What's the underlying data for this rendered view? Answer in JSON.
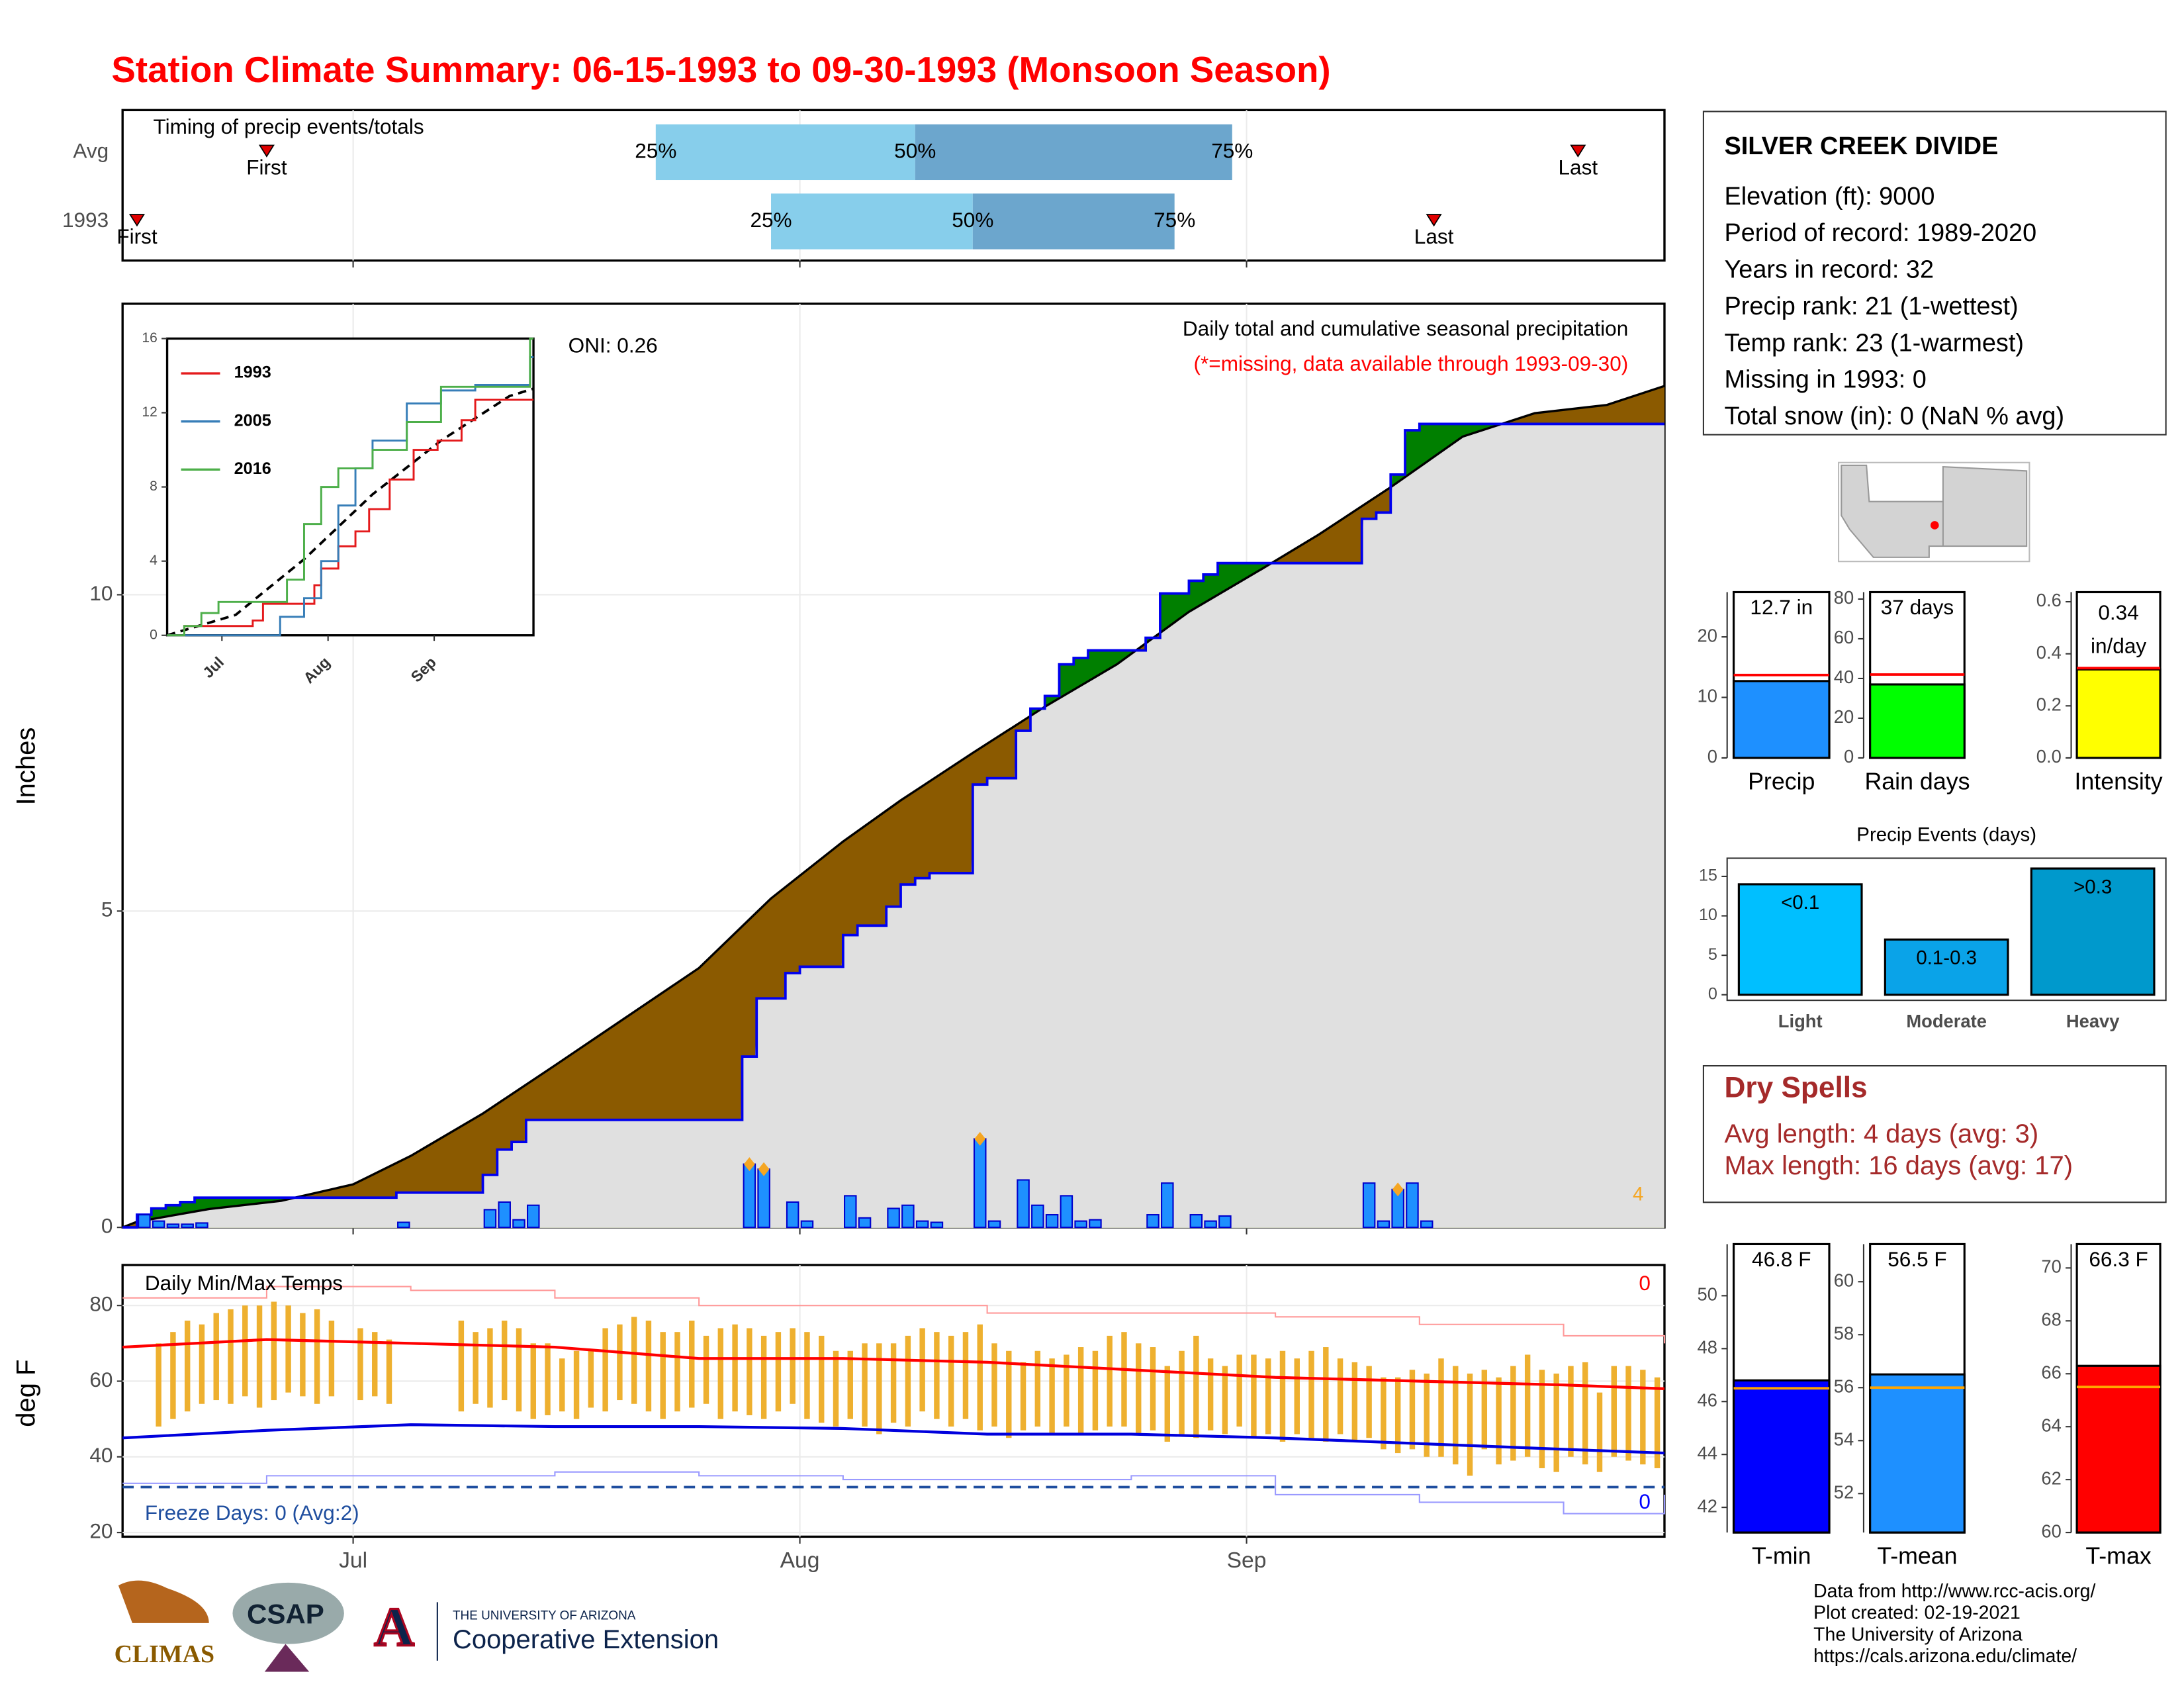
{
  "title": "Station Climate Summary: 06-15-1993 to 09-30-1993 (Monsoon Season)",
  "info": {
    "station": "SILVER CREEK DIVIDE",
    "lines": [
      "Elevation (ft): 9000",
      "Period of record: 1989-2020",
      "Years in record: 32",
      "Precip rank: 21 (1-wettest)",
      "Temp rank: 23 (1-warmest)",
      "Missing in 1993: 0",
      "Total snow (in): 0 (NaN % avg)"
    ]
  },
  "dry_spells": {
    "title": "Dry Spells",
    "lines": [
      "Avg length: 4 days (avg: 3)",
      "Max length: 16 days (avg: 17)"
    ]
  },
  "footer": {
    "logos": [
      "CLIMAS",
      "CSAP",
      "A",
      "THE UNIVERSITY OF ARIZONA",
      "Cooperative Extension"
    ],
    "credits": [
      "Data from http://www.rcc-acis.org/",
      "Plot created: 02-19-2021",
      "The University of Arizona",
      "https://cals.arizona.edu/climate/"
    ]
  },
  "chart_data": [
    {
      "type": "timeline",
      "title": "Timing of precip events/totals",
      "categories": [
        "Avg",
        "1993"
      ],
      "xlim": [
        0,
        107
      ],
      "xticks": [
        16,
        47,
        78
      ],
      "grid": true,
      "first": [
        10,
        1
      ],
      "last": [
        101,
        91
      ],
      "q25": [
        37,
        45
      ],
      "q50": [
        55,
        59
      ],
      "q75": [
        77,
        73
      ],
      "labels": {
        "first": "First",
        "last": "Last",
        "q25": "25%",
        "q50": "50%",
        "q75": "75%"
      },
      "colors": [
        "#87ceeb",
        "#6ca6cd"
      ],
      "marker_color": "#e00000"
    },
    {
      "type": "area",
      "title": "Daily total and cumulative seasonal precipitation",
      "subtitle": "(*=missing, data available through 1993-09-30)",
      "annotation": "ONI: 0.26",
      "ylabel": "Inches",
      "xlim": [
        0,
        107
      ],
      "xticks": [
        16,
        47,
        78
      ],
      "ylim": [
        0,
        14.6
      ],
      "yticks": [
        0,
        5,
        10
      ],
      "grid": true,
      "observed": {
        "color": "#0000ee",
        "x": [
          0,
          1,
          2,
          3,
          4,
          5,
          19,
          25,
          26,
          27,
          28,
          43,
          44,
          46,
          47,
          50,
          51,
          53,
          54,
          55,
          56,
          59,
          60,
          62,
          63,
          64,
          65,
          66,
          67,
          71,
          72,
          74,
          75,
          76,
          86,
          87,
          88,
          89,
          90
        ],
        "values": [
          0,
          0.2,
          0.3,
          0.35,
          0.4,
          0.47,
          0.55,
          0.83,
          1.23,
          1.35,
          1.7,
          2.7,
          3.62,
          4.02,
          4.12,
          4.62,
          4.77,
          5.07,
          5.42,
          5.52,
          5.6,
          7.0,
          7.1,
          7.85,
          8.2,
          8.4,
          8.9,
          9.0,
          9.12,
          9.32,
          10.02,
          10.22,
          10.32,
          10.5,
          11.2,
          11.3,
          11.9,
          12.6,
          12.7
        ]
      },
      "average": {
        "color": "#000000",
        "x": [
          0,
          1,
          6,
          11,
          16,
          20,
          25,
          30,
          35,
          40,
          45,
          50,
          54,
          59,
          64,
          69,
          74,
          79,
          83,
          88,
          93,
          98,
          103,
          107
        ],
        "values": [
          0,
          0.09,
          0.29,
          0.42,
          0.68,
          1.13,
          1.8,
          2.56,
          3.33,
          4.1,
          5.2,
          6.1,
          6.75,
          7.5,
          8.23,
          8.9,
          9.73,
          10.4,
          10.95,
          11.7,
          12.5,
          12.87,
          13.0,
          13.3
        ]
      },
      "daily": {
        "color": "#1e90ff",
        "values": [
          0,
          0.2,
          0.1,
          0.05,
          0.05,
          0.07,
          0,
          0,
          0,
          0,
          0,
          0,
          0,
          0,
          0,
          0,
          0,
          0,
          0,
          0.08,
          0,
          0,
          0,
          0,
          0,
          0.28,
          0.4,
          0.12,
          0.35,
          0,
          0,
          0,
          0,
          0,
          0,
          0,
          0,
          0,
          0,
          0,
          0,
          0,
          0,
          1,
          0.92,
          0,
          0.4,
          0.1,
          0,
          0,
          0.5,
          0.15,
          0,
          0.3,
          0.35,
          0.1,
          0.08,
          0,
          0,
          1.4,
          0.1,
          0,
          0.75,
          0.35,
          0.2,
          0.5,
          0.1,
          0.12,
          0,
          0,
          0,
          0.2,
          0.7,
          0,
          0.2,
          0.1,
          0.18,
          0,
          0,
          0,
          0,
          0,
          0,
          0,
          0,
          0,
          0.7,
          0.1,
          0.6,
          0.7,
          0.1,
          0,
          0,
          0,
          0,
          0,
          0,
          0,
          0,
          0,
          0,
          0,
          0,
          0,
          0,
          0,
          0,
          0
        ]
      },
      "flagged": [
        43,
        44,
        59,
        88
      ],
      "flag_color": "#f5a623",
      "flagged_count": 4,
      "colors": {
        "above": "#007f00",
        "below": "#8b5a00",
        "base": "#e0e0e0"
      }
    },
    {
      "type": "line",
      "xlim": [
        0,
        107
      ],
      "xticks": [
        {
          "value": 16,
          "label": "Jul"
        },
        {
          "value": 47,
          "label": "Aug"
        },
        {
          "value": 78,
          "label": "Sep"
        }
      ],
      "ylim": [
        0,
        16
      ],
      "yticks": [
        0,
        4,
        8,
        12,
        16
      ],
      "series": [
        {
          "name": "1993",
          "color": "#e41a1c",
          "x": [
            0,
            5,
            25,
            28,
            43,
            45,
            50,
            55,
            59,
            65,
            72,
            79,
            86,
            90
          ],
          "values": [
            0,
            0.5,
            0.8,
            1.7,
            2.7,
            3.6,
            4.8,
            5.6,
            6.8,
            8.4,
            10,
            10.5,
            11.6,
            12.7
          ]
        },
        {
          "name": "2005",
          "color": "#377eb8",
          "x": [
            0,
            30,
            33,
            40,
            45,
            50,
            55,
            60,
            70,
            80,
            90,
            106
          ],
          "values": [
            0,
            0,
            1,
            2,
            4,
            7,
            9,
            10.5,
            12.5,
            13.2,
            13.5,
            15
          ]
        },
        {
          "name": "2016",
          "color": "#4daf4a",
          "x": [
            0,
            5,
            10,
            15,
            35,
            40,
            45,
            50,
            60,
            70,
            80,
            106
          ],
          "values": [
            0,
            0.5,
            1.2,
            1.8,
            3,
            6,
            8,
            9,
            10,
            11.5,
            13.4,
            16
          ]
        }
      ],
      "average": {
        "color": "#000000",
        "x": [
          0,
          20,
          40,
          60,
          80,
          100,
          107
        ],
        "values": [
          0,
          1.1,
          4.1,
          7.6,
          10.5,
          12.9,
          13.3
        ]
      }
    },
    {
      "type": "range",
      "title": "Daily Min/Max Temps",
      "ylabel": "deg F",
      "xlim": [
        0,
        107
      ],
      "xticks": [
        {
          "value": 16,
          "label": "Jul"
        },
        {
          "value": 47,
          "label": "Aug"
        },
        {
          "value": 78,
          "label": "Sep"
        }
      ],
      "ylim": [
        18.9,
        90.7
      ],
      "yticks": [
        20,
        40,
        60,
        80
      ],
      "grid": true,
      "max": [
        null,
        null,
        70,
        73,
        76,
        75,
        78,
        79,
        80,
        80,
        81,
        80,
        78,
        79,
        76,
        null,
        74,
        73,
        71,
        null,
        null,
        null,
        null,
        76,
        73,
        74,
        76,
        74,
        70,
        70,
        66,
        68,
        68,
        74,
        75,
        77,
        76,
        73,
        73,
        76,
        72,
        74,
        75,
        74,
        72,
        73,
        74,
        73,
        72,
        68,
        68,
        70,
        70,
        70,
        72,
        74,
        73,
        72,
        73,
        75,
        70,
        68,
        65,
        68,
        66,
        67,
        69,
        68,
        72,
        73,
        70,
        69,
        64,
        68,
        72,
        66,
        64,
        67,
        67,
        66,
        68,
        66,
        68,
        69,
        66,
        65,
        64,
        61,
        61,
        63,
        62,
        66,
        64,
        62,
        63,
        61,
        64,
        67,
        63,
        62,
        64,
        65,
        57,
        64,
        64,
        63,
        61,
        null
      ],
      "min": [
        null,
        null,
        48,
        50,
        52,
        54,
        55,
        54,
        56,
        53,
        55,
        57,
        56,
        54,
        56,
        null,
        55,
        56,
        54,
        null,
        null,
        null,
        null,
        52,
        54,
        53,
        55,
        52,
        50,
        51,
        52,
        50,
        53,
        52,
        55,
        54,
        52,
        50,
        52,
        53,
        54,
        50,
        52,
        51,
        50,
        52,
        54,
        50,
        49,
        48,
        50,
        48,
        46,
        49,
        48,
        52,
        50,
        48,
        50,
        47,
        48,
        45,
        47,
        48,
        46,
        48,
        46,
        47,
        48,
        48,
        46,
        47,
        44,
        46,
        45,
        47,
        46,
        48,
        45,
        46,
        44,
        46,
        45,
        44,
        46,
        44,
        45,
        42,
        41,
        42,
        40,
        40,
        38,
        35,
        42,
        38,
        39,
        40,
        37,
        36,
        40,
        38,
        36,
        40,
        39,
        38,
        37,
        null
      ],
      "bar_color": "#eeb02f",
      "avg_max": {
        "color": "#ff0000",
        "x": [
          0,
          10,
          20,
          30,
          40,
          50,
          60,
          70,
          80,
          90,
          100,
          107
        ],
        "values": [
          69,
          71,
          70,
          69,
          66,
          66,
          65,
          63,
          61,
          60,
          59,
          58
        ]
      },
      "avg_min": {
        "color": "#0000dd",
        "x": [
          0,
          10,
          20,
          30,
          40,
          50,
          60,
          70,
          80,
          90,
          100,
          107
        ],
        "values": [
          45,
          47,
          48.5,
          48,
          48,
          47.5,
          46,
          46,
          45,
          43.5,
          42,
          41
        ]
      },
      "record_max": {
        "color": "#ff9a9a",
        "x": [
          0,
          10,
          20,
          30,
          40,
          50,
          60,
          70,
          80,
          90,
          100,
          107
        ],
        "values": [
          82,
          85,
          84,
          82,
          80,
          80,
          78,
          78,
          77,
          75,
          72,
          70
        ]
      },
      "record_min": {
        "color": "#9a9aff",
        "x": [
          0,
          10,
          20,
          30,
          40,
          50,
          60,
          70,
          80,
          90,
          100,
          107
        ],
        "values": [
          33,
          35,
          35,
          36,
          35,
          34,
          34,
          35,
          30,
          28,
          25,
          30
        ]
      },
      "freeze": {
        "value": 32,
        "color": "#1f4e9f"
      },
      "freeze_label": "Freeze Days: 0 (Avg:2)",
      "hot_count": 0,
      "cold_count": 0
    },
    {
      "type": "bar",
      "categories": [
        "Precip"
      ],
      "values": [
        12.7
      ],
      "value_labels": [
        "12.7 in"
      ],
      "average": 13.7,
      "ylim": [
        0,
        27.4
      ],
      "yticks": [
        0,
        10,
        20
      ],
      "color": "#1e90ff",
      "avg_color": "#ff0000"
    },
    {
      "type": "bar",
      "categories": [
        "Rain days"
      ],
      "values": [
        37
      ],
      "value_labels": [
        "37 days"
      ],
      "average": 42,
      "ylim": [
        0,
        83.5
      ],
      "yticks": [
        0,
        20,
        40,
        60,
        80
      ],
      "color": "#00ff00",
      "avg_color": "#ff0000"
    },
    {
      "type": "bar",
      "categories": [
        "Intensity"
      ],
      "values": [
        0.34
      ],
      "value_labels": [
        "0.34 in/day"
      ],
      "average": 0.345,
      "ylim": [
        0,
        0.637
      ],
      "yticks": [
        {
          "value": 0,
          "label": "0.0"
        },
        0.2,
        0.4,
        0.6
      ],
      "color": "#ffff00",
      "avg_color": "#ff0000"
    },
    {
      "type": "bar",
      "title": "Precip Events (days)",
      "categories": [
        "Light",
        "Moderate",
        "Heavy"
      ],
      "values": [
        14,
        7,
        16
      ],
      "bar_labels": [
        "<0.1",
        "0.1-0.3",
        ">0.3"
      ],
      "ylim": [
        0,
        16.6
      ],
      "yticks": [
        0,
        5,
        10,
        15
      ],
      "colors": [
        "#00bfff",
        "#0aa3e8",
        "#0099cc"
      ]
    },
    {
      "type": "bar",
      "categories": [
        "T-min"
      ],
      "values": [
        46.8
      ],
      "value_labels": [
        "46.8 F"
      ],
      "average": 46.5,
      "ylim": [
        41.05,
        51.95
      ],
      "yticks": [
        42,
        44,
        46,
        48,
        50
      ],
      "color": "#0000ff",
      "avg_color": "#ffa500"
    },
    {
      "type": "bar",
      "categories": [
        "T-mean"
      ],
      "values": [
        56.5
      ],
      "value_labels": [
        "56.5 F"
      ],
      "average": 56,
      "ylim": [
        50.53,
        61.42
      ],
      "yticks": [
        52,
        54,
        56,
        58,
        60
      ],
      "color": "#1e90ff",
      "avg_color": "#ffa500"
    },
    {
      "type": "bar",
      "categories": [
        "T-max"
      ],
      "values": [
        66.3
      ],
      "value_labels": [
        "66.3 F"
      ],
      "average": 65.5,
      "ylim": [
        60,
        70.9
      ],
      "yticks": [
        60,
        62,
        64,
        66,
        68,
        70
      ],
      "color": "#ff0000",
      "avg_color": "#ffa500"
    }
  ]
}
